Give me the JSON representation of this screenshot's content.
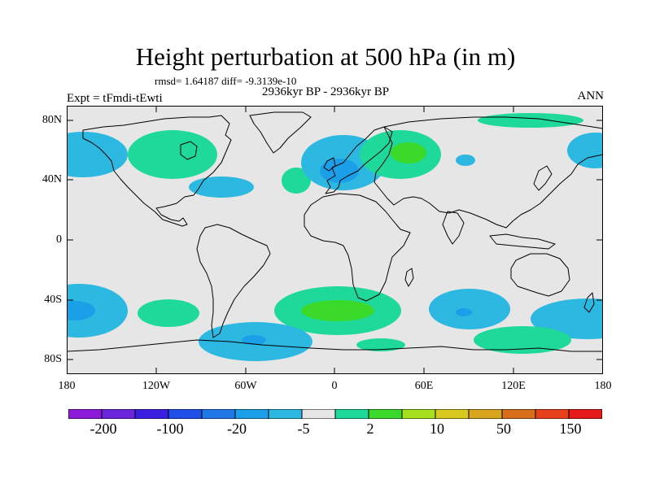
{
  "title": "Height perturbation at 500 hPa (in m)",
  "stats_line": "rmsd= 1.64187 diff= -9.3139e-10",
  "experiment": "Expt = tFmdi-tEwti",
  "period": "2936kyr BP - 2936kyr BP",
  "season": "ANN",
  "lat_ticks": [
    "80N",
    "40N",
    "0",
    "40S",
    "80S"
  ],
  "lon_ticks": [
    "180",
    "120W",
    "60W",
    "0",
    "60E",
    "120E",
    "180"
  ],
  "colorbar": {
    "colors": [
      "#8c1ad9",
      "#6a25dd",
      "#3a1fe0",
      "#1f4fe6",
      "#1f78e6",
      "#1a9fe8",
      "#2cb8e0",
      "#e6e6e6",
      "#1ed99a",
      "#3ad92a",
      "#a6e01f",
      "#d9c81f",
      "#d9a51f",
      "#d96e1a",
      "#e6411a",
      "#e61a1a"
    ],
    "labels": [
      "-200",
      "-100",
      "-20",
      "-5",
      "2",
      "10",
      "50",
      "150"
    ]
  },
  "anomaly_colors": {
    "positive": "#1ed99a",
    "positive_strong": "#3ad92a",
    "negative": "#2cb8e0",
    "negative_strong": "#1a9fe8",
    "background": "#e6e6e6"
  }
}
